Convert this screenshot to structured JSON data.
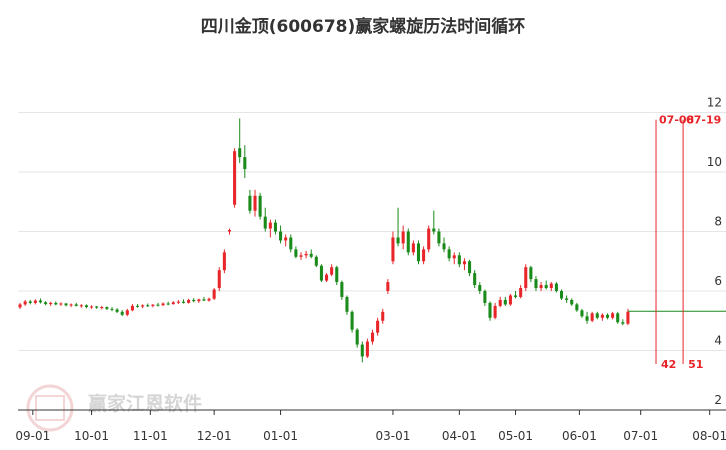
{
  "chart_data": {
    "type": "candlestick",
    "title": "四川金顶(600678)赢家螺旋历法时间循环",
    "watermark": "赢家江恩软件",
    "ohlc_order": [
      "open",
      "high",
      "low",
      "close"
    ],
    "up_color": "#e8262a",
    "down_color": "#1a8a1a",
    "ylim": [
      2,
      13.9
    ],
    "yticks": [
      2,
      4,
      6,
      8,
      10,
      12
    ],
    "grid": true,
    "xlim": [
      -0.4,
      138.2
    ],
    "xticks": [
      {
        "value": 2.5,
        "label": "09-01"
      },
      {
        "value": 14,
        "label": "10-01"
      },
      {
        "value": 25.5,
        "label": "11-01"
      },
      {
        "value": 38,
        "label": "12-01"
      },
      {
        "value": 51,
        "label": "01-01"
      },
      {
        "value": 73,
        "label": "03-01"
      },
      {
        "value": 86,
        "label": "04-01"
      },
      {
        "value": 97,
        "label": "05-01"
      },
      {
        "value": 109.5,
        "label": "06-01"
      },
      {
        "value": 121.5,
        "label": "07-01"
      },
      {
        "value": 135,
        "label": "08-01"
      }
    ],
    "level": {
      "value": 5.32,
      "color": "#1a8a1a"
    },
    "cycles": [
      {
        "x": 124.5,
        "date": "07-08",
        "count": 42,
        "color": "#e8262a"
      },
      {
        "x": 129.8,
        "date": "07-19",
        "count": 51,
        "color": "#e8262a"
      }
    ],
    "candles": [
      [
        5.45,
        5.6,
        5.4,
        5.55
      ],
      [
        5.55,
        5.7,
        5.5,
        5.65
      ],
      [
        5.65,
        5.7,
        5.55,
        5.6
      ],
      [
        5.6,
        5.72,
        5.55,
        5.68
      ],
      [
        5.68,
        5.75,
        5.58,
        5.62
      ],
      [
        5.62,
        5.66,
        5.52,
        5.56
      ],
      [
        5.56,
        5.64,
        5.5,
        5.6
      ],
      [
        5.6,
        5.65,
        5.52,
        5.55
      ],
      [
        5.55,
        5.62,
        5.5,
        5.58
      ],
      [
        5.58,
        5.6,
        5.48,
        5.52
      ],
      [
        5.52,
        5.58,
        5.46,
        5.55
      ],
      [
        5.55,
        5.6,
        5.48,
        5.5
      ],
      [
        5.5,
        5.56,
        5.44,
        5.52
      ],
      [
        5.52,
        5.55,
        5.42,
        5.46
      ],
      [
        5.46,
        5.52,
        5.4,
        5.48
      ],
      [
        5.48,
        5.5,
        5.4,
        5.44
      ],
      [
        5.44,
        5.5,
        5.38,
        5.46
      ],
      [
        5.46,
        5.48,
        5.36,
        5.4
      ],
      [
        5.4,
        5.46,
        5.32,
        5.38
      ],
      [
        5.38,
        5.42,
        5.26,
        5.3
      ],
      [
        5.3,
        5.36,
        5.16,
        5.2
      ],
      [
        5.2,
        5.4,
        5.15,
        5.35
      ],
      [
        5.35,
        5.56,
        5.32,
        5.5
      ],
      [
        5.5,
        5.56,
        5.44,
        5.48
      ],
      [
        5.48,
        5.55,
        5.42,
        5.52
      ],
      [
        5.52,
        5.58,
        5.46,
        5.5
      ],
      [
        5.5,
        5.56,
        5.45,
        5.54
      ],
      [
        5.54,
        5.6,
        5.48,
        5.52
      ],
      [
        5.52,
        5.62,
        5.5,
        5.58
      ],
      [
        5.58,
        5.64,
        5.52,
        5.56
      ],
      [
        5.56,
        5.66,
        5.54,
        5.62
      ],
      [
        5.62,
        5.7,
        5.56,
        5.64
      ],
      [
        5.64,
        5.72,
        5.58,
        5.6
      ],
      [
        5.6,
        5.74,
        5.58,
        5.7
      ],
      [
        5.7,
        5.76,
        5.62,
        5.66
      ],
      [
        5.66,
        5.74,
        5.6,
        5.72
      ],
      [
        5.72,
        5.8,
        5.66,
        5.68
      ],
      [
        5.68,
        5.78,
        5.64,
        5.74
      ],
      [
        5.74,
        6.1,
        5.7,
        6.05
      ],
      [
        6.1,
        6.8,
        6.0,
        6.7
      ],
      [
        6.7,
        7.4,
        6.6,
        7.3
      ],
      [
        8.0,
        8.1,
        7.9,
        8.05
      ],
      [
        8.9,
        10.8,
        8.8,
        10.7
      ],
      [
        10.8,
        11.8,
        10.3,
        10.5
      ],
      [
        10.5,
        10.9,
        9.8,
        10.1
      ],
      [
        9.2,
        9.4,
        8.6,
        8.7
      ],
      [
        8.7,
        9.4,
        8.5,
        9.2
      ],
      [
        9.2,
        9.3,
        8.4,
        8.5
      ],
      [
        8.5,
        8.8,
        8.0,
        8.1
      ],
      [
        8.1,
        8.4,
        7.8,
        8.3
      ],
      [
        8.3,
        8.4,
        7.9,
        8.0
      ],
      [
        8.0,
        8.2,
        7.6,
        7.7
      ],
      [
        7.7,
        7.9,
        7.5,
        7.8
      ],
      [
        7.8,
        7.9,
        7.3,
        7.4
      ],
      [
        7.4,
        7.5,
        7.1,
        7.15
      ],
      [
        7.15,
        7.3,
        7.05,
        7.2
      ],
      [
        7.2,
        7.35,
        7.1,
        7.25
      ],
      [
        7.25,
        7.4,
        7.1,
        7.15
      ],
      [
        7.15,
        7.2,
        6.8,
        6.85
      ],
      [
        6.85,
        6.9,
        6.3,
        6.35
      ],
      [
        6.35,
        6.6,
        6.3,
        6.55
      ],
      [
        6.55,
        6.9,
        6.5,
        6.8
      ],
      [
        6.8,
        6.85,
        6.2,
        6.3
      ],
      [
        6.3,
        6.35,
        5.7,
        5.8
      ],
      [
        5.8,
        5.85,
        5.2,
        5.3
      ],
      [
        5.3,
        5.35,
        4.6,
        4.7
      ],
      [
        4.7,
        4.75,
        4.1,
        4.2
      ],
      [
        4.2,
        4.3,
        3.6,
        3.8
      ],
      [
        3.8,
        4.4,
        3.75,
        4.3
      ],
      [
        4.3,
        4.7,
        4.2,
        4.6
      ],
      [
        4.6,
        5.1,
        4.5,
        5.0
      ],
      [
        5.0,
        5.4,
        4.9,
        5.3
      ],
      [
        6.0,
        6.4,
        5.9,
        6.3
      ],
      [
        7.0,
        8.0,
        6.9,
        7.8
      ],
      [
        7.8,
        8.8,
        7.5,
        7.6
      ],
      [
        7.6,
        8.2,
        7.4,
        8.0
      ],
      [
        8.0,
        8.1,
        7.2,
        7.3
      ],
      [
        7.3,
        7.7,
        7.2,
        7.6
      ],
      [
        7.6,
        7.7,
        6.9,
        7.0
      ],
      [
        7.0,
        7.5,
        6.9,
        7.4
      ],
      [
        7.4,
        8.2,
        7.3,
        8.1
      ],
      [
        8.1,
        8.7,
        7.9,
        8.0
      ],
      [
        8.0,
        8.1,
        7.5,
        7.6
      ],
      [
        7.6,
        7.8,
        7.3,
        7.4
      ],
      [
        7.4,
        7.5,
        7.0,
        7.1
      ],
      [
        7.1,
        7.3,
        6.9,
        7.2
      ],
      [
        7.2,
        7.3,
        6.8,
        6.9
      ],
      [
        6.9,
        7.1,
        6.7,
        7.0
      ],
      [
        7.0,
        7.05,
        6.5,
        6.6
      ],
      [
        6.6,
        6.7,
        6.1,
        6.2
      ],
      [
        6.2,
        6.3,
        5.9,
        6.0
      ],
      [
        6.0,
        6.05,
        5.5,
        5.6
      ],
      [
        5.6,
        5.65,
        5.0,
        5.1
      ],
      [
        5.1,
        5.6,
        5.05,
        5.5
      ],
      [
        5.5,
        5.8,
        5.45,
        5.7
      ],
      [
        5.7,
        5.8,
        5.5,
        5.55
      ],
      [
        5.55,
        5.9,
        5.5,
        5.85
      ],
      [
        5.85,
        6.0,
        5.75,
        5.8
      ],
      [
        5.8,
        6.2,
        5.75,
        6.1
      ],
      [
        6.1,
        6.9,
        6.0,
        6.8
      ],
      [
        6.8,
        6.85,
        6.3,
        6.4
      ],
      [
        6.4,
        6.5,
        6.0,
        6.1
      ],
      [
        6.1,
        6.3,
        6.0,
        6.2
      ],
      [
        6.2,
        6.35,
        6.05,
        6.1
      ],
      [
        6.1,
        6.3,
        6.0,
        6.25
      ],
      [
        6.25,
        6.3,
        5.95,
        6.0
      ],
      [
        6.0,
        6.05,
        5.7,
        5.75
      ],
      [
        5.75,
        5.85,
        5.6,
        5.7
      ],
      [
        5.7,
        5.75,
        5.5,
        5.55
      ],
      [
        5.55,
        5.6,
        5.3,
        5.35
      ],
      [
        5.35,
        5.4,
        5.1,
        5.15
      ],
      [
        5.15,
        5.3,
        4.9,
        5.0
      ],
      [
        5.0,
        5.3,
        4.95,
        5.25
      ],
      [
        5.25,
        5.3,
        5.05,
        5.1
      ],
      [
        5.1,
        5.25,
        5.0,
        5.2
      ],
      [
        5.2,
        5.25,
        5.05,
        5.1
      ],
      [
        5.1,
        5.3,
        5.05,
        5.25
      ],
      [
        5.25,
        5.3,
        4.9,
        4.95
      ],
      [
        4.95,
        5.05,
        4.85,
        4.9
      ],
      [
        4.9,
        5.4,
        4.85,
        5.3
      ]
    ]
  }
}
